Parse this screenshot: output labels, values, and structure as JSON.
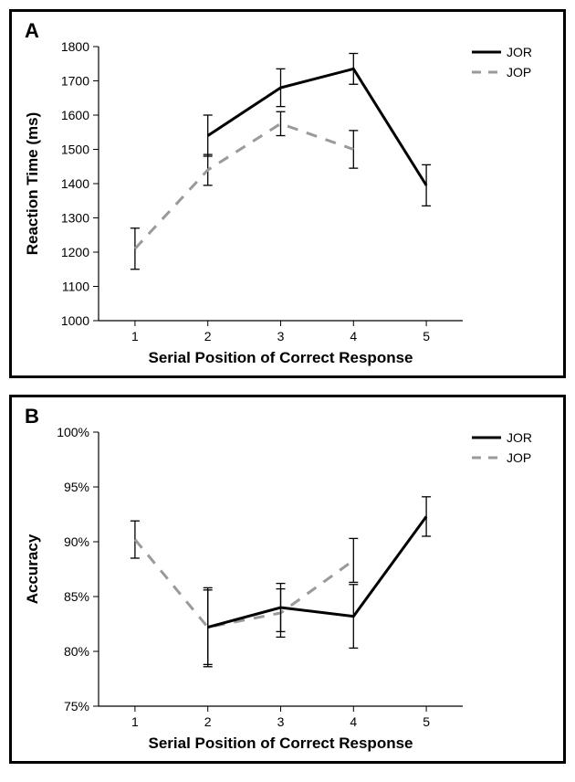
{
  "panelA": {
    "label": "A",
    "type": "line",
    "xlabel": "Serial Position of Correct Response",
    "ylabel": "Reaction Time (ms)",
    "xlim": [
      0.5,
      5.5
    ],
    "ylim": [
      1000,
      1800
    ],
    "ytick_step": 100,
    "xticks": [
      1,
      2,
      3,
      4,
      5
    ],
    "background_color": "#ffffff",
    "border_color": "#000000",
    "tick_fontsize": 14,
    "label_fontsize": 17,
    "legend": {
      "position": "top-right",
      "items": [
        {
          "label": "JOR",
          "color": "#000000",
          "dash": "solid"
        },
        {
          "label": "JOP",
          "color": "#9a9a9a",
          "dash": "dashed"
        }
      ]
    },
    "series": {
      "JOR": {
        "color": "#000000",
        "dash": "solid",
        "line_width": 3,
        "x": [
          2,
          3,
          4,
          5
        ],
        "y": [
          1540,
          1680,
          1735,
          1395
        ],
        "err": [
          60,
          55,
          45,
          60
        ]
      },
      "JOP": {
        "color": "#9a9a9a",
        "dash": "dashed",
        "line_width": 3,
        "x": [
          1,
          2,
          3,
          4
        ],
        "y": [
          1210,
          1440,
          1575,
          1500
        ],
        "err": [
          60,
          45,
          35,
          55
        ]
      }
    }
  },
  "panelB": {
    "label": "B",
    "type": "line",
    "xlabel": "Serial Position of Correct Response",
    "ylabel": "Accuracy",
    "xlim": [
      0.5,
      5.5
    ],
    "ylim": [
      75,
      100
    ],
    "ytick_step": 5,
    "ytick_suffix": "%",
    "xticks": [
      1,
      2,
      3,
      4,
      5
    ],
    "background_color": "#ffffff",
    "border_color": "#000000",
    "tick_fontsize": 14,
    "label_fontsize": 17,
    "legend": {
      "position": "top-right",
      "items": [
        {
          "label": "JOR",
          "color": "#000000",
          "dash": "solid"
        },
        {
          "label": "JOP",
          "color": "#9a9a9a",
          "dash": "dashed"
        }
      ]
    },
    "series": {
      "JOR": {
        "color": "#000000",
        "dash": "solid",
        "line_width": 3,
        "x": [
          2,
          3,
          4,
          5
        ],
        "y": [
          82.2,
          84.0,
          83.2,
          92.3
        ],
        "err": [
          3.6,
          2.2,
          2.9,
          1.8
        ]
      },
      "JOP": {
        "color": "#9a9a9a",
        "dash": "dashed",
        "line_width": 3,
        "x": [
          1,
          2,
          3,
          4
        ],
        "y": [
          90.2,
          82.2,
          83.5,
          88.3
        ],
        "err": [
          1.7,
          3.4,
          2.2,
          2.0
        ]
      }
    }
  }
}
